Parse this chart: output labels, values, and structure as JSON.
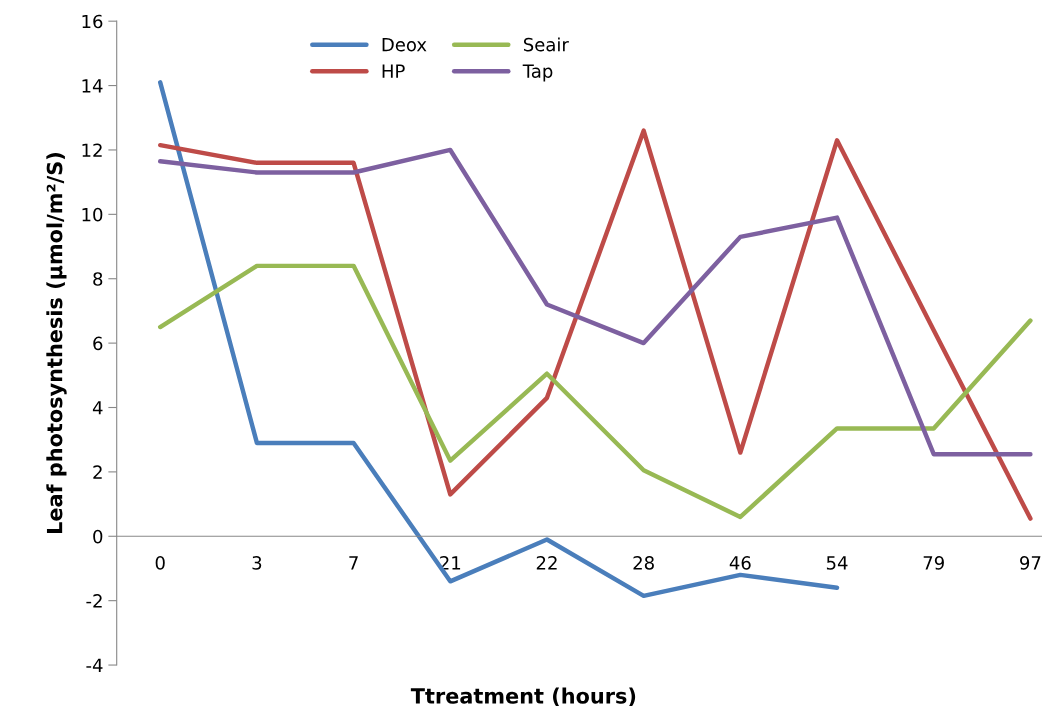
{
  "chart_data": {
    "type": "line",
    "xlabel": "Ttreatment (hours)",
    "ylabel": "Leaf photosynthesis (μmol/m²/S)",
    "categories": [
      "0",
      "3",
      "7",
      "21",
      "22",
      "28",
      "46",
      "54",
      "79",
      "97"
    ],
    "series": [
      {
        "name": "Deox",
        "color": "#4a7ebb",
        "values": [
          14.1,
          2.9,
          2.9,
          -1.4,
          -0.1,
          -1.85,
          -1.2,
          -1.6,
          null,
          null
        ]
      },
      {
        "name": "HP",
        "color": "#be4b48",
        "values": [
          12.15,
          11.6,
          11.6,
          1.3,
          4.3,
          12.6,
          2.6,
          12.3,
          6.4,
          0.55
        ]
      },
      {
        "name": "Seair",
        "color": "#98b954",
        "values": [
          6.5,
          8.4,
          8.4,
          2.35,
          5.05,
          2.05,
          0.6,
          3.35,
          3.35,
          6.7
        ]
      },
      {
        "name": "Tap",
        "color": "#7d60a0",
        "values": [
          11.65,
          11.3,
          11.3,
          12.0,
          7.2,
          6.0,
          9.3,
          9.9,
          2.55,
          2.55
        ]
      }
    ],
    "ylim": [
      -4,
      16
    ],
    "yticks": [
      -4,
      -2,
      0,
      2,
      4,
      6,
      8,
      10,
      12,
      14,
      16
    ],
    "grid": false,
    "legend": "top",
    "marker": "none",
    "line_style": "solid"
  }
}
